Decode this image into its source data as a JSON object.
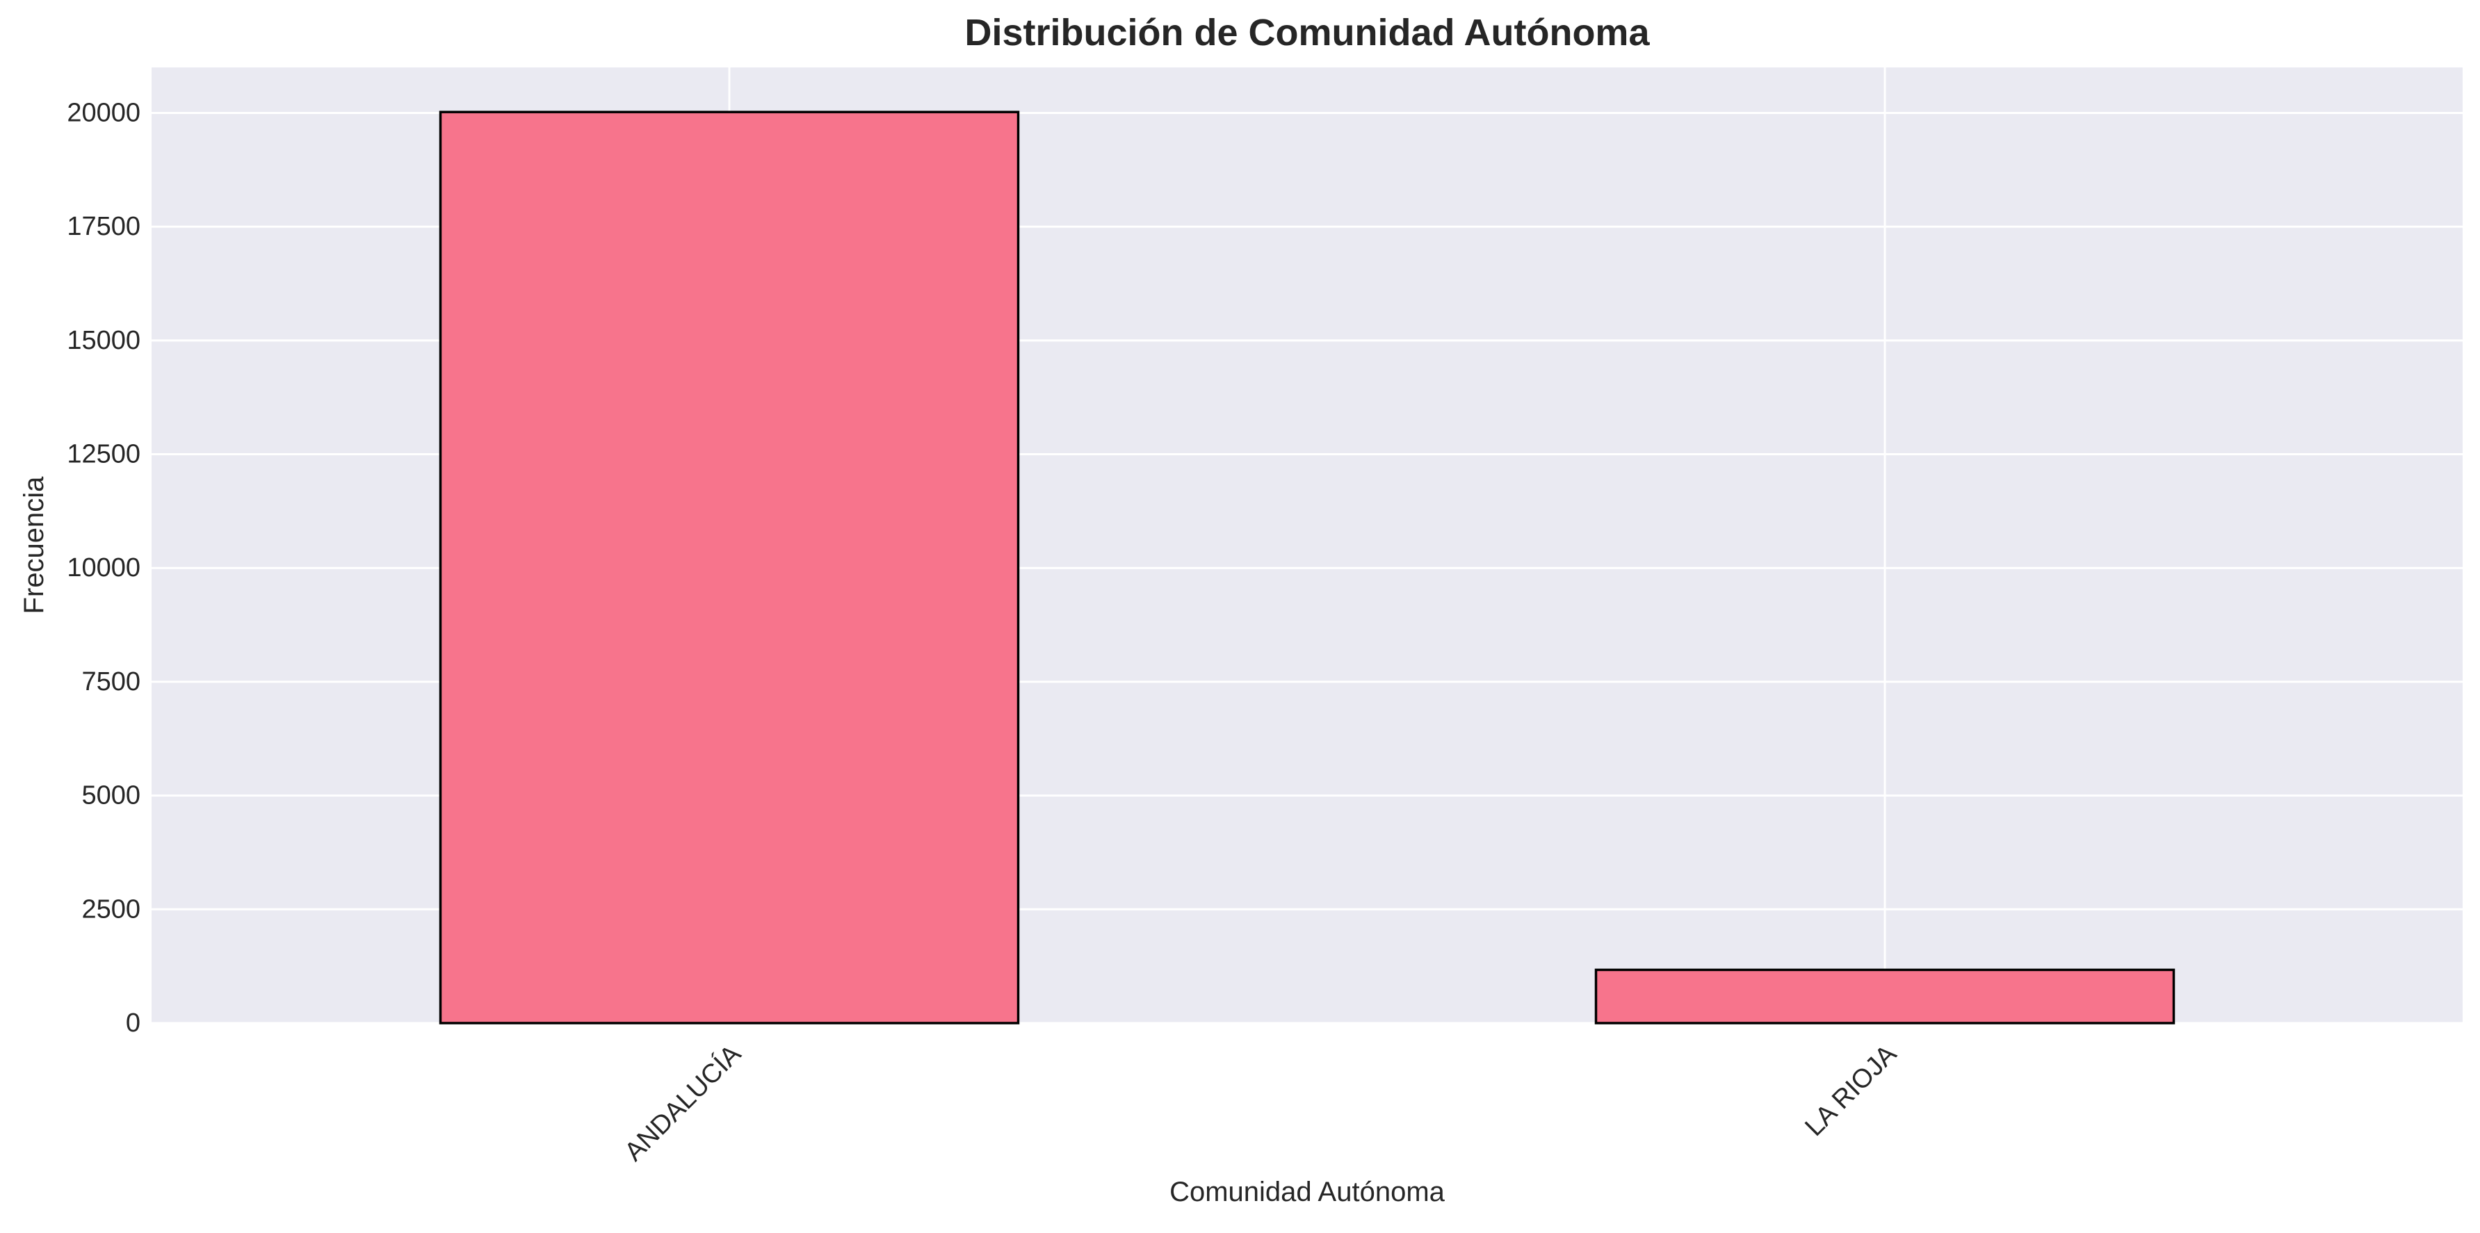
{
  "chart_data": {
    "type": "bar",
    "title": "Distribución de Comunidad Autónoma",
    "xlabel": "Comunidad Autónoma",
    "ylabel": "Frecuencia",
    "categories": [
      "ANDALUCÍA",
      "LA RIOJA"
    ],
    "values": [
      20020,
      1170
    ],
    "ylim": [
      0,
      21000
    ],
    "yticks": [
      0,
      2500,
      5000,
      7500,
      10000,
      12500,
      15000,
      17500,
      20000
    ],
    "grid": true,
    "legend": "none",
    "colors": {
      "bar_fill": "#f7748c",
      "bar_edge": "#000000",
      "plot_background": "#eaeaf2",
      "grid": "#ffffff",
      "text": "#262626"
    }
  }
}
